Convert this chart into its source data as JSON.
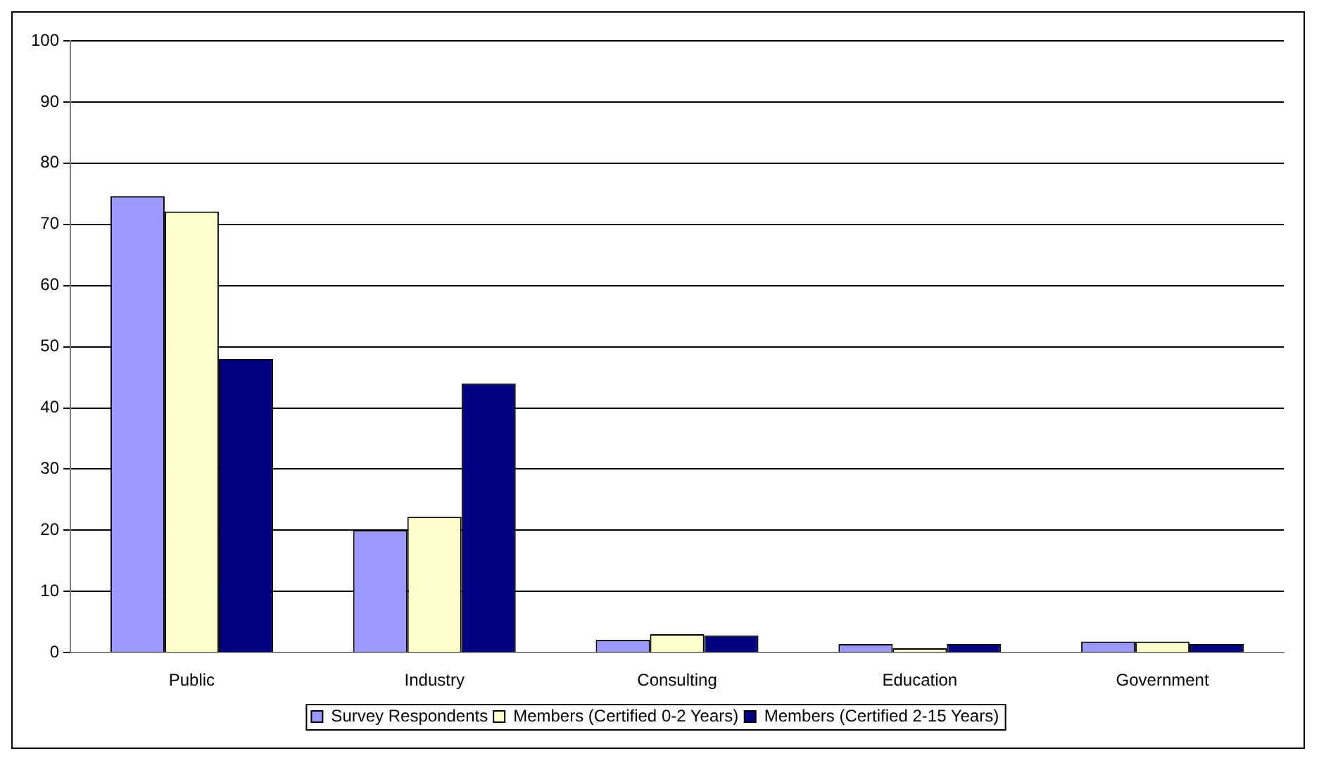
{
  "chart_data": {
    "type": "bar",
    "categories": [
      "Public",
      "Industry",
      "Consulting",
      "Education",
      "Government"
    ],
    "series": [
      {
        "name": "Survey Respondents",
        "color": "#9999ff",
        "values": [
          74.6,
          20,
          2.1,
          1.4,
          1.8
        ]
      },
      {
        "name": "Members (Certified 0-2 Years)",
        "color": "#ffffcc",
        "values": [
          72.1,
          22.2,
          3.0,
          0.7,
          1.8
        ]
      },
      {
        "name": "Members (Certified 2-15 Years)",
        "color": "#000080",
        "values": [
          48.0,
          44,
          2.8,
          1.4,
          1.4
        ]
      }
    ],
    "ylim": [
      0,
      100
    ],
    "yticks": [
      0,
      10,
      20,
      30,
      40,
      50,
      60,
      70,
      80,
      90,
      100
    ],
    "grid": "y",
    "legend": "bottom"
  }
}
